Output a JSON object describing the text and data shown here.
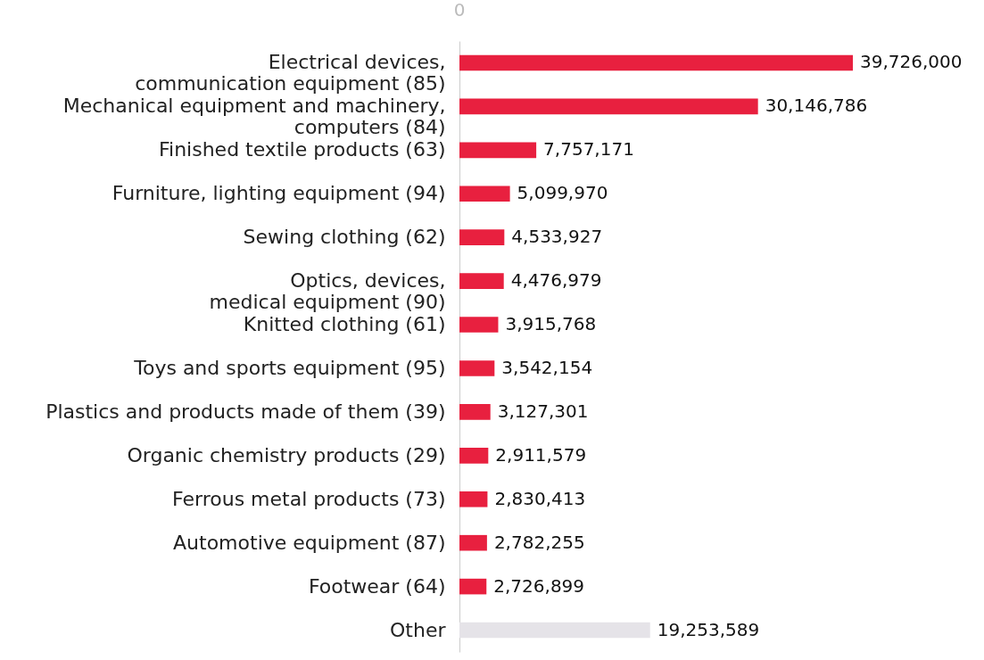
{
  "chart_data": {
    "type": "bar",
    "orientation": "horizontal",
    "categories": [
      "Electrical devices,\ncommunication equipment (85)",
      "Mechanical equipment and machinery,\ncomputers (84)",
      "Finished textile products (63)",
      "Furniture, lighting equipment (94)",
      "Sewing clothing (62)",
      "Optics, devices,\nmedical equipment (90)",
      "Knitted clothing (61)",
      "Toys and sports equipment (95)",
      "Plastics and products made of them (39)",
      "Organic chemistry products (29)",
      "Ferrous metal products (73)",
      "Automotive equipment (87)",
      "Footwear (64)",
      "Other"
    ],
    "values": [
      39726000,
      30146786,
      7757171,
      5099970,
      4533927,
      4476979,
      3915768,
      3542154,
      3127301,
      2911579,
      2830413,
      2782255,
      2726899,
      19253589
    ],
    "colors": [
      "#e8203f",
      "#e8203f",
      "#e8203f",
      "#e8203f",
      "#e8203f",
      "#e8203f",
      "#e8203f",
      "#e8203f",
      "#e8203f",
      "#e8203f",
      "#e8203f",
      "#e8203f",
      "#e8203f",
      "#e5e3e8"
    ],
    "value_labels": [
      "39,726,000",
      "30,146,786",
      "7,757,171",
      "5,099,970",
      "4,533,927",
      "4,476,979",
      "3,915,768",
      "3,542,154",
      "3,127,301",
      "2,911,579",
      "2,830,413",
      "2,782,255",
      "2,726,899",
      "19,253,589"
    ],
    "annotations": [
      "0"
    ]
  }
}
